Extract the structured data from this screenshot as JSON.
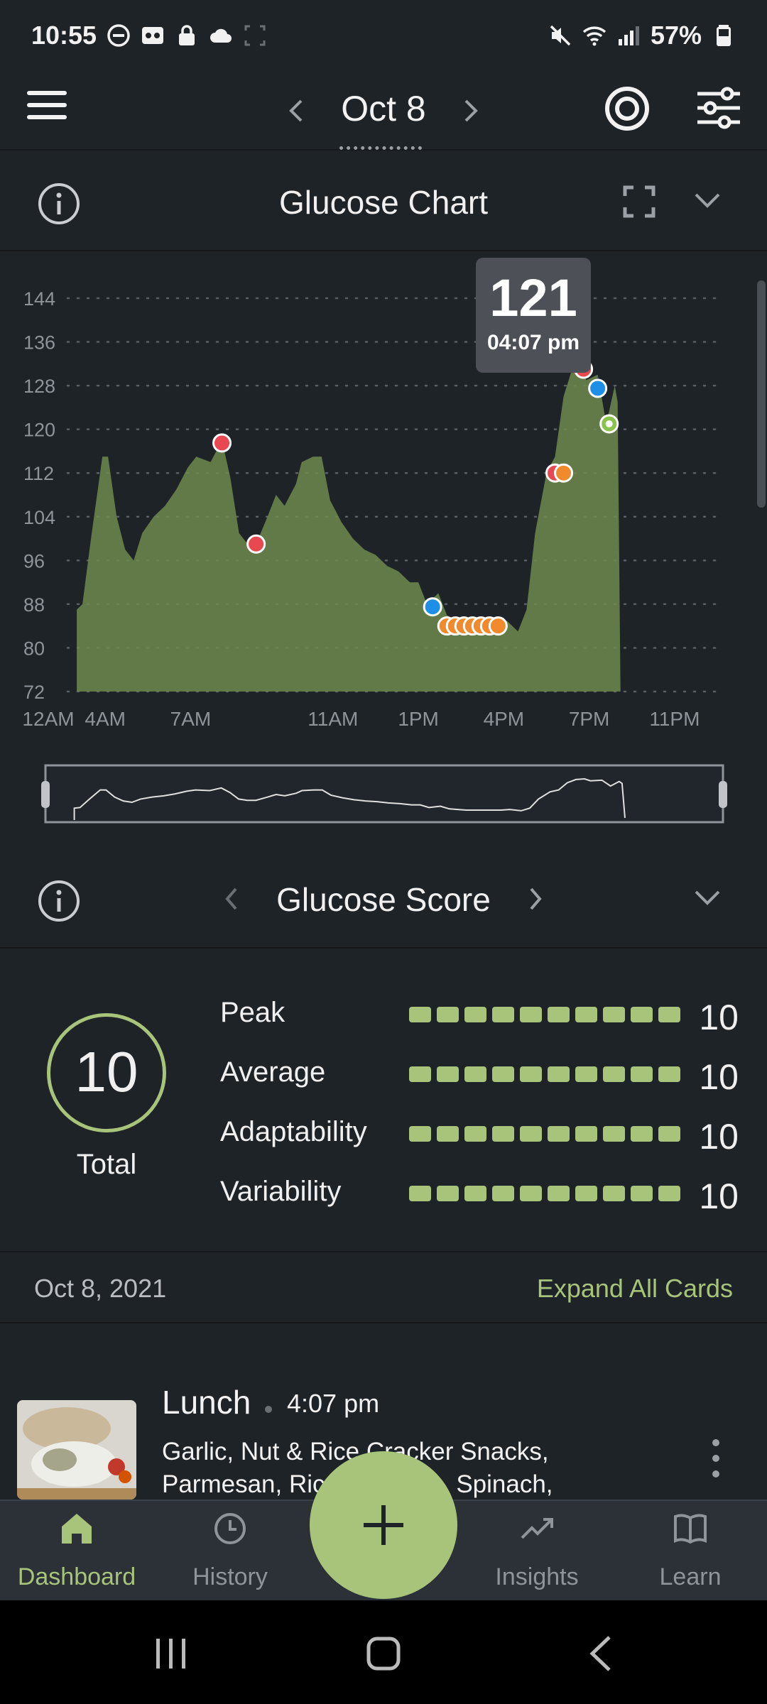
{
  "status_bar": {
    "time": "10:55",
    "battery": "57%"
  },
  "header": {
    "date": "Oct 8"
  },
  "glucose_chart": {
    "title": "Glucose Chart",
    "tooltip": {
      "value": "121",
      "time": "04:07 pm"
    }
  },
  "chart_data": {
    "type": "area",
    "x_unit": "hour of day",
    "xticks": [
      {
        "label": "12AM",
        "hour": 0
      },
      {
        "label": "4AM",
        "hour": 2
      },
      {
        "label": "7AM",
        "hour": 5
      },
      {
        "label": "11AM",
        "hour": 10
      },
      {
        "label": "1PM",
        "hour": 13
      },
      {
        "label": "4PM",
        "hour": 16
      },
      {
        "label": "7PM",
        "hour": 19
      },
      {
        "label": "11PM",
        "hour": 22
      }
    ],
    "yticks": [
      72,
      80,
      88,
      96,
      104,
      112,
      120,
      128,
      136,
      144
    ],
    "ylim": [
      72,
      144
    ],
    "xlim": [
      0,
      23.5
    ],
    "grid": true,
    "series": [
      {
        "color": "#6e8a4c",
        "points": [
          [
            1.0,
            87
          ],
          [
            1.2,
            88
          ],
          [
            1.5,
            100
          ],
          [
            1.9,
            115
          ],
          [
            2.1,
            115
          ],
          [
            2.4,
            104
          ],
          [
            2.7,
            98
          ],
          [
            3.0,
            96
          ],
          [
            3.3,
            101
          ],
          [
            3.7,
            104
          ],
          [
            4.1,
            106
          ],
          [
            4.5,
            109
          ],
          [
            4.9,
            113
          ],
          [
            5.2,
            115
          ],
          [
            5.7,
            114
          ],
          [
            6.1,
            118
          ],
          [
            6.4,
            111
          ],
          [
            6.7,
            101
          ],
          [
            7.0,
            99
          ],
          [
            7.3,
            99
          ],
          [
            7.7,
            104
          ],
          [
            8.0,
            108
          ],
          [
            8.3,
            106
          ],
          [
            8.7,
            110
          ],
          [
            8.9,
            114
          ],
          [
            9.3,
            115
          ],
          [
            9.6,
            115
          ],
          [
            9.9,
            107
          ],
          [
            10.3,
            103
          ],
          [
            10.7,
            100
          ],
          [
            11.1,
            98
          ],
          [
            11.5,
            97
          ],
          [
            11.9,
            95
          ],
          [
            12.3,
            94
          ],
          [
            12.7,
            92
          ],
          [
            13.0,
            92
          ],
          [
            13.3,
            88
          ],
          [
            13.7,
            90
          ],
          [
            14.0,
            86
          ],
          [
            14.3,
            85
          ],
          [
            14.6,
            84
          ],
          [
            15.0,
            84
          ],
          [
            15.4,
            84
          ],
          [
            15.8,
            84
          ],
          [
            16.1,
            85
          ],
          [
            16.5,
            83
          ],
          [
            16.8,
            87
          ],
          [
            17.1,
            101
          ],
          [
            17.5,
            112
          ],
          [
            17.8,
            115
          ],
          [
            18.1,
            126
          ],
          [
            18.4,
            131
          ],
          [
            18.7,
            132
          ],
          [
            18.9,
            129
          ],
          [
            19.3,
            130
          ],
          [
            19.6,
            121
          ],
          [
            19.9,
            128
          ],
          [
            20.0,
            125
          ],
          [
            20.1,
            72
          ]
        ]
      }
    ],
    "markers": [
      {
        "x": 6.1,
        "y": 117.5,
        "color": "#e8484f"
      },
      {
        "x": 7.3,
        "y": 99,
        "color": "#e8484f"
      },
      {
        "x": 13.5,
        "y": 87.5,
        "color": "#1e8ee6"
      },
      {
        "x": 14.0,
        "y": 84,
        "color": "#f08a2c"
      },
      {
        "x": 14.3,
        "y": 84,
        "color": "#f08a2c"
      },
      {
        "x": 14.6,
        "y": 84,
        "color": "#f08a2c"
      },
      {
        "x": 14.9,
        "y": 84,
        "color": "#f08a2c"
      },
      {
        "x": 15.2,
        "y": 84,
        "color": "#f08a2c"
      },
      {
        "x": 15.5,
        "y": 84,
        "color": "#f08a2c"
      },
      {
        "x": 15.8,
        "y": 84,
        "color": "#f08a2c"
      },
      {
        "x": 17.8,
        "y": 112,
        "color": "#e8484f"
      },
      {
        "x": 18.1,
        "y": 112,
        "color": "#f08a2c"
      },
      {
        "x": 18.8,
        "y": 131,
        "color": "#e8484f"
      },
      {
        "x": 19.3,
        "y": 127.5,
        "color": "#1e8ee6"
      },
      {
        "x": 19.7,
        "y": 121,
        "color": "#8ac34a"
      }
    ]
  },
  "glucose_score": {
    "title": "Glucose Score",
    "total_value": "10",
    "total_label": "Total",
    "metrics": [
      {
        "label": "Peak",
        "value": "10",
        "level": 10,
        "max": 10
      },
      {
        "label": "Average",
        "value": "10",
        "level": 10,
        "max": 10
      },
      {
        "label": "Adaptability",
        "value": "10",
        "level": 10,
        "max": 10
      },
      {
        "label": "Variability",
        "value": "10",
        "level": 10,
        "max": 10
      }
    ]
  },
  "cards": {
    "date": "Oct 8, 2021",
    "expand_all": "Expand All Cards",
    "items": [
      {
        "title": "Lunch",
        "time": "4:07 pm",
        "description": "Garlic, Nut & Rice Cracker Snacks, Parmesan, Rice, Chicken, Spinach,"
      }
    ]
  },
  "bottom_nav": {
    "items": [
      {
        "label": "Dashboard",
        "icon": "home-icon"
      },
      {
        "label": "History",
        "icon": "clock-icon"
      },
      {
        "label": "Insights",
        "icon": "trend-icon"
      },
      {
        "label": "Learn",
        "icon": "book-icon"
      }
    ],
    "fab_icon": "plus-icon"
  },
  "colors": {
    "background": "#1e2328",
    "accent": "#a8c47a",
    "chart_fill": "#6e8a4c"
  }
}
